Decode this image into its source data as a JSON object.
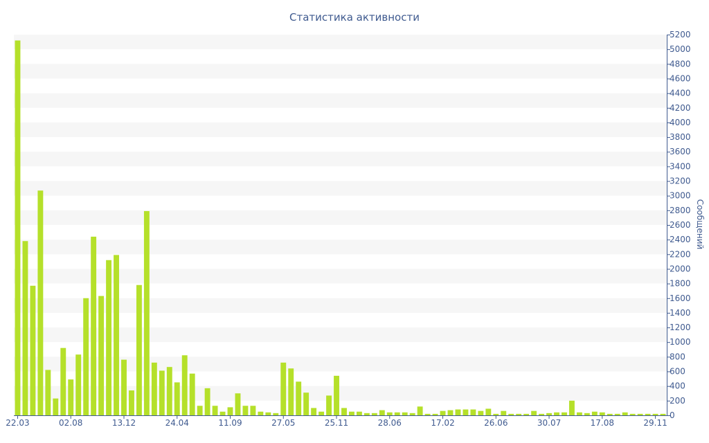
{
  "chart_data": {
    "type": "bar",
    "title": "Статистика активности",
    "xlabel": "",
    "ylabel": "Сообщений",
    "ylim": [
      0,
      5200
    ],
    "ytick_step": 200,
    "grid": true,
    "legend": "none",
    "colors": {
      "bar": "#b5e02a",
      "band": "#f6f6f6",
      "axis": "#3f5a8f",
      "text": "#3f5a8f"
    },
    "x_tick_labels": [
      {
        "index": 0,
        "label": "22.03"
      },
      {
        "index": 7,
        "label": "02.08"
      },
      {
        "index": 14,
        "label": "13.12"
      },
      {
        "index": 21,
        "label": "24.04"
      },
      {
        "index": 28,
        "label": "11.09"
      },
      {
        "index": 35,
        "label": "27.05"
      },
      {
        "index": 42,
        "label": "25.11"
      },
      {
        "index": 49,
        "label": "28.06"
      },
      {
        "index": 56,
        "label": "17.02"
      },
      {
        "index": 63,
        "label": "26.06"
      },
      {
        "index": 70,
        "label": "30.07"
      },
      {
        "index": 77,
        "label": "17.08"
      },
      {
        "index": 84,
        "label": "29.11"
      }
    ],
    "values": [
      5120,
      2380,
      1770,
      3070,
      620,
      230,
      920,
      490,
      830,
      1600,
      2440,
      1630,
      2120,
      2190,
      760,
      340,
      1780,
      2790,
      720,
      610,
      660,
      450,
      820,
      570,
      130,
      370,
      130,
      50,
      110,
      300,
      130,
      130,
      50,
      40,
      30,
      720,
      640,
      460,
      310,
      100,
      50,
      270,
      540,
      100,
      50,
      50,
      30,
      30,
      70,
      40,
      40,
      40,
      30,
      120,
      20,
      20,
      60,
      70,
      80,
      80,
      80,
      60,
      90,
      20,
      60,
      20,
      20,
      20,
      60,
      20,
      30,
      40,
      40,
      200,
      40,
      30,
      50,
      40,
      20,
      20,
      40,
      20,
      20,
      20,
      20,
      20
    ]
  }
}
